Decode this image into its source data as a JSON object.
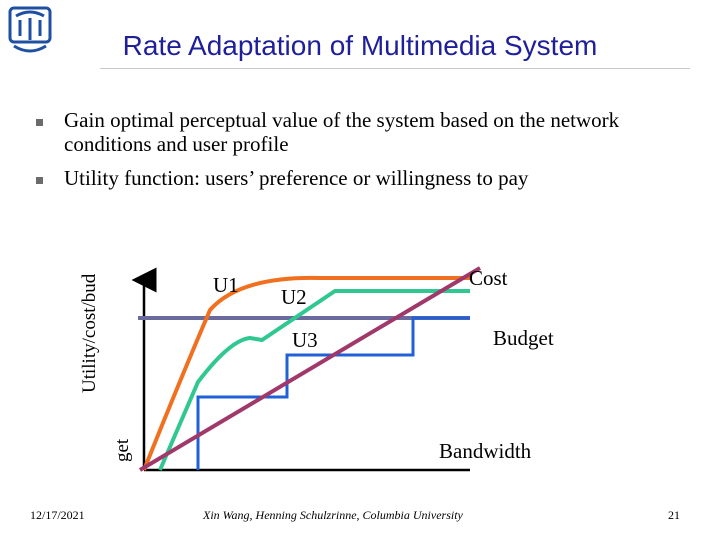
{
  "slide": {
    "title": "Rate Adaptation of Multimedia System",
    "bullets": [
      "Gain optimal perceptual value of the system based on the network conditions and user profile",
      "Utility function: users’ preference or willingness to pay"
    ]
  },
  "diagram": {
    "y_axis_label_main": "Utility/cost/bud",
    "y_axis_label_tail": "get",
    "x_axis_label": "Bandwidth",
    "curve_labels": {
      "u1": "U1",
      "u2": "U2",
      "u3": "U3"
    },
    "line_labels": {
      "cost": "Cost",
      "budget": "Budget"
    },
    "colors": {
      "u1": "#f07020",
      "u2": "#30c890",
      "u3": "#2060d8",
      "cost": "#a0386a",
      "budget": "#6a6a9e",
      "title": "#1f1f9a"
    }
  },
  "footer": {
    "date": "12/17/2021",
    "author": "Xin Wang, Henning Schulzrinne, Columbia University",
    "page": "21"
  }
}
